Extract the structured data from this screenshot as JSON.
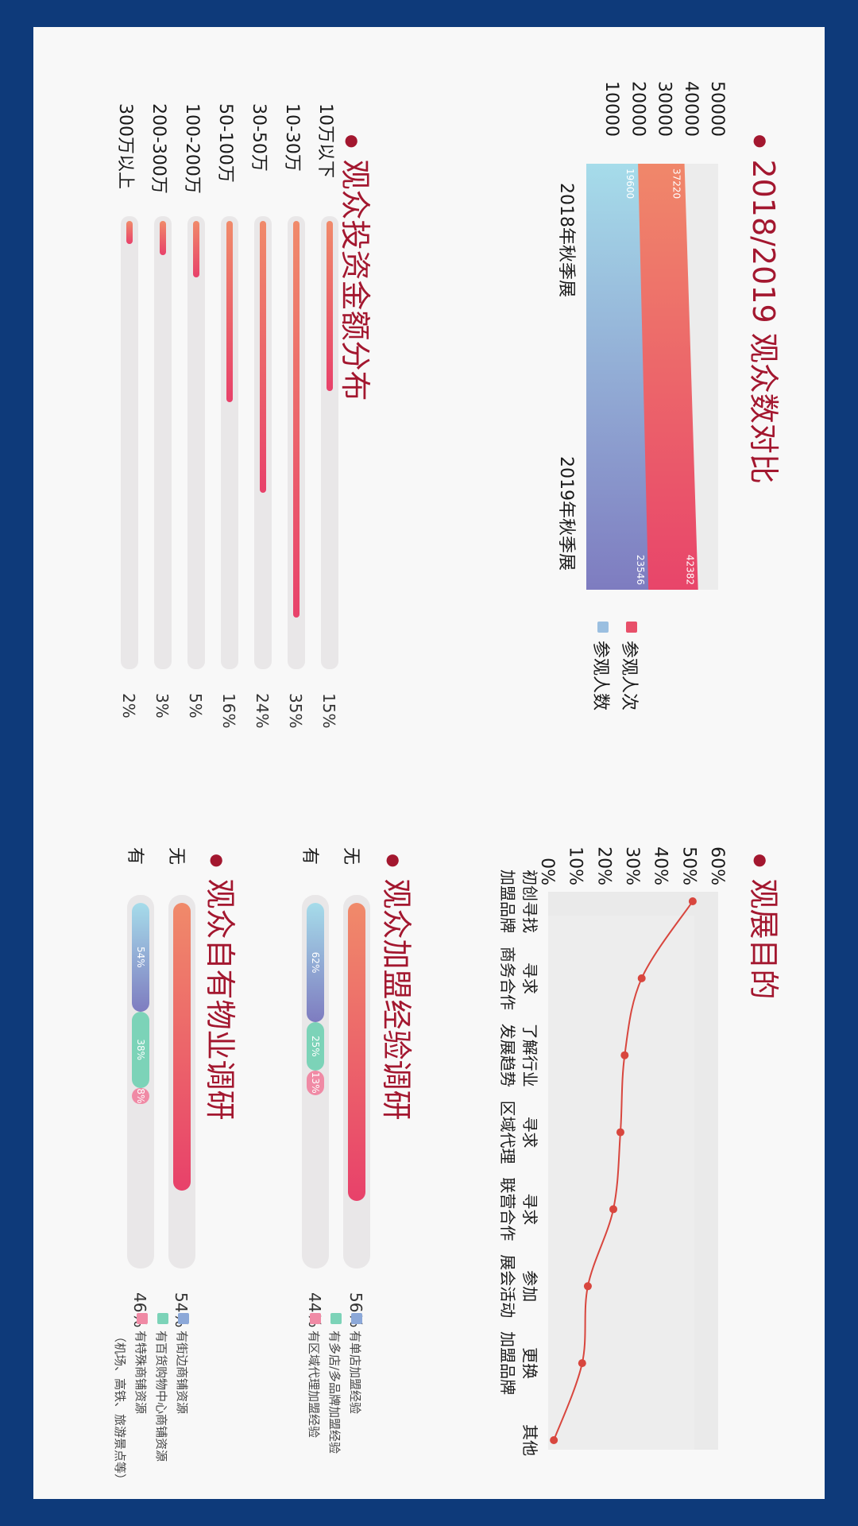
{
  "colors": {
    "background": "#0e3a7a",
    "title": "#a3172f",
    "visits": "#e8506a",
    "visitors": "#9bbfe0",
    "line": "#d8463e",
    "teal": "#7cd3b8",
    "pink": "#f08aa5",
    "blue": "#8ca8d8"
  },
  "sections": {
    "audience_compare": "2018/2019 观众数对比",
    "visit_purpose": "观展目的",
    "investment": "观众投资金额分布",
    "franchise": "观众加盟经验调研",
    "property": "观众自有物业调研"
  },
  "chart_data": [
    {
      "type": "area",
      "title": "2018/2019 观众数对比",
      "categories": [
        "2018年秋季展",
        "2019年秋季展"
      ],
      "yticks": [
        "10000",
        "20000",
        "30000",
        "40000",
        "50000"
      ],
      "ylim": [
        0,
        50000
      ],
      "series": [
        {
          "name": "参观人次",
          "values": [
            37220,
            42382
          ],
          "labels": [
            "37220",
            "42382"
          ]
        },
        {
          "name": "参观人数",
          "values": [
            19600,
            23546
          ],
          "labels": [
            "19600",
            "23546"
          ]
        }
      ],
      "legend": "right"
    },
    {
      "type": "line",
      "title": "观展目的",
      "categories": [
        [
          "初创寻找",
          "加盟品牌"
        ],
        [
          "寻求",
          "商务合作"
        ],
        [
          "了解行业",
          "发展趋势"
        ],
        [
          "寻求",
          "区域代理"
        ],
        [
          "寻求",
          "联营合作"
        ],
        [
          "参加",
          "展会活动"
        ],
        [
          "更换",
          "加盟品牌"
        ],
        [
          "其他",
          ""
        ]
      ],
      "values": [
        51,
        33,
        27,
        25.5,
        23,
        14,
        12,
        2
      ],
      "yticks": [
        "0%",
        "10%",
        "20%",
        "30%",
        "40%",
        "50%",
        "60%"
      ],
      "ylim": [
        0,
        60
      ]
    },
    {
      "type": "bar",
      "title": "观众投资金额分布",
      "categories": [
        "10万以下",
        "10-30万",
        "30-50万",
        "50-100万",
        "100-200万",
        "200-300万",
        "300万以上"
      ],
      "values": [
        15,
        35,
        24,
        16,
        5,
        3,
        2
      ],
      "labels": [
        "15%",
        "35%",
        "24%",
        "16%",
        "5%",
        "3%",
        "2%"
      ]
    },
    {
      "type": "bar",
      "title": "观众加盟经验调研",
      "categories": [
        "无",
        "有"
      ],
      "values": [
        56,
        44
      ],
      "labels": [
        "56%",
        "44%"
      ],
      "breakdown": [
        {
          "name": "有单店加盟经验",
          "value": 62,
          "label": "62%"
        },
        {
          "name": "有多店/多品牌加盟经验",
          "value": 25,
          "label": "25%"
        },
        {
          "name": "有区域代理加盟经验",
          "value": 13,
          "label": "13%"
        }
      ]
    },
    {
      "type": "bar",
      "title": "观众自有物业调研",
      "categories": [
        "无",
        "有"
      ],
      "values": [
        54,
        46
      ],
      "labels": [
        "54%",
        "46%"
      ],
      "breakdown": [
        {
          "name": "有街边商铺资源",
          "value": 54,
          "label": "54%"
        },
        {
          "name": "有百货购物中心商铺资源",
          "value": 38,
          "label": "38%"
        },
        {
          "name": "有特殊商铺资源",
          "value": 8,
          "label": "8%"
        }
      ],
      "note": "（机场、高铁、旅游景点等）"
    }
  ]
}
